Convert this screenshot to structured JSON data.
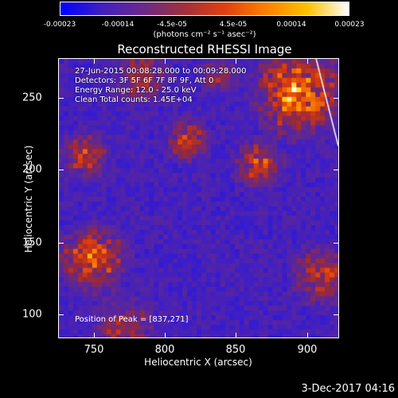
{
  "colorbar": {
    "gradient": [
      "#0000ff",
      "#4020c0",
      "#6a2a8a",
      "#a0303a",
      "#e04010",
      "#ff8000",
      "#ffc000",
      "#ffffff"
    ],
    "ticks": [
      "-0.00023",
      "-0.00014",
      "-4.5e-05",
      "4.5e-05",
      "0.00014",
      "0.00023"
    ],
    "units": "(photons cm⁻² s⁻¹ asec⁻²)"
  },
  "plot": {
    "title": "Reconstructed RHESSI Image",
    "info": [
      "27-Jun-2015 00:08:28.000 to 00:09:28.000",
      "Detectors: 3F 5F 6F 7F 8F 9F, Att 0",
      "Energy Range: 12.0 - 25.0 keV",
      "Clean     Total counts: 1.45E+04"
    ],
    "peak": "Position of Peak = [837,271]",
    "xlabel": "Heliocentric X (arcsec)",
    "ylabel": "Heliocentric Y (arcsec)",
    "xticks": [
      "750",
      "800",
      "850",
      "900"
    ],
    "yticks": [
      "250",
      "200",
      "150",
      "100"
    ]
  },
  "timestamp": "3-Dec-2017 04:16"
}
